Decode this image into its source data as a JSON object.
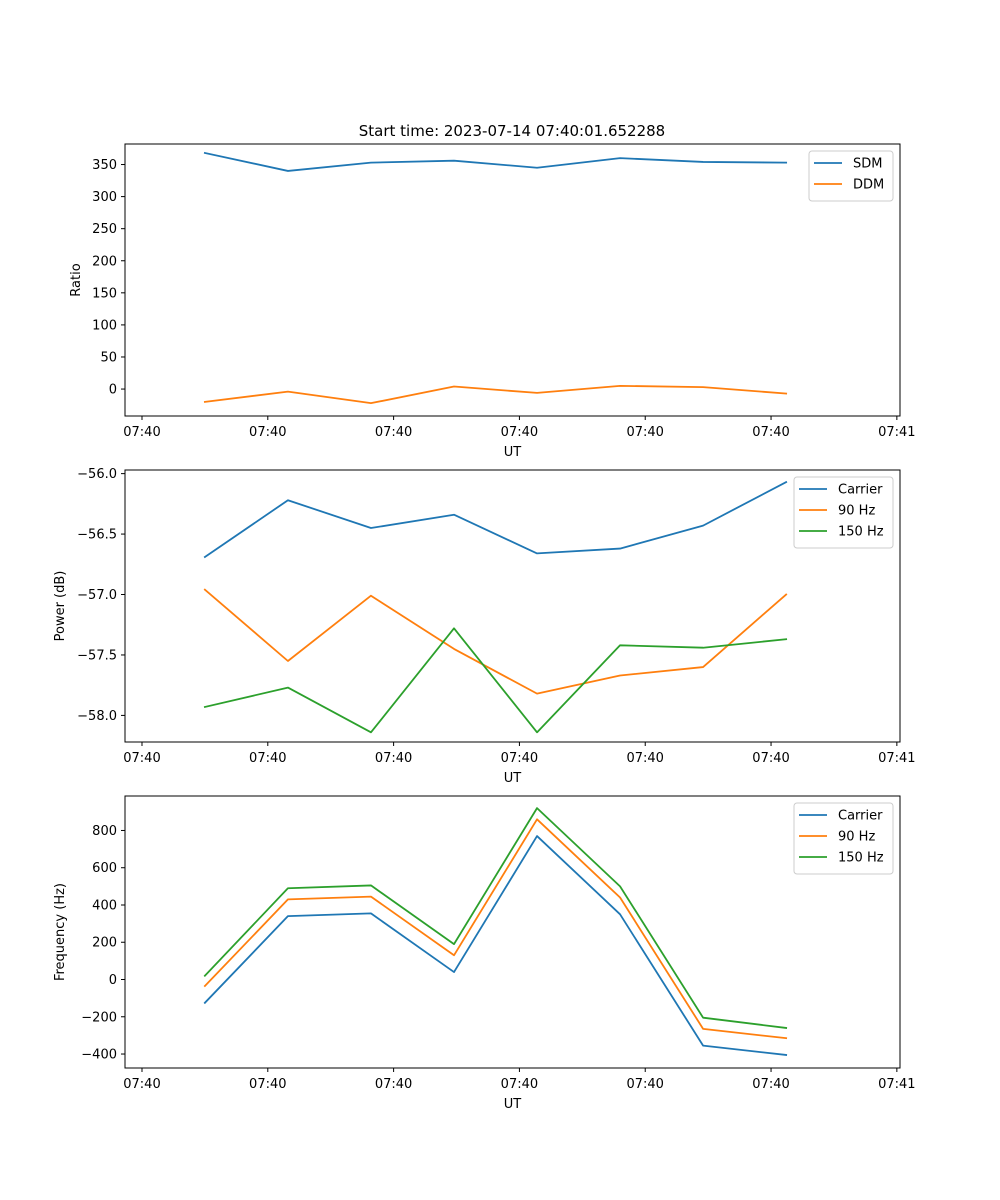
{
  "figure": {
    "title": "Start time: 2023-07-14 07:40:01.652288"
  },
  "chart_data": [
    {
      "type": "line",
      "name": "ratio",
      "xlabel": "UT",
      "ylabel": "Ratio",
      "x_tick_labels": [
        "07:40",
        "07:40",
        "07:40",
        "07:40",
        "07:40",
        "07:40",
        "07:41"
      ],
      "x_tick_positions": [
        0,
        2,
        4,
        6,
        8,
        10,
        12
      ],
      "x": [
        1,
        2.32,
        3.64,
        4.96,
        6.28,
        7.6,
        8.92,
        10.24
      ],
      "xlim": [
        -0.27,
        12.05
      ],
      "ylim": [
        -42,
        382
      ],
      "yticks": [
        0,
        50,
        100,
        150,
        200,
        250,
        300,
        350
      ],
      "y_tick_labels": [
        "0",
        "50",
        "100",
        "150",
        "200",
        "250",
        "300",
        "350"
      ],
      "legend": "top-right",
      "series": [
        {
          "name": "SDM",
          "color": "#1f77b4",
          "values": [
            368,
            340,
            353,
            356,
            345,
            360,
            354,
            353
          ]
        },
        {
          "name": "DDM",
          "color": "#ff7f0e",
          "values": [
            -20,
            -4,
            -22,
            4,
            -6,
            5,
            3,
            -7
          ]
        }
      ]
    },
    {
      "type": "line",
      "name": "power",
      "xlabel": "UT",
      "ylabel": "Power (dB)",
      "x_tick_labels": [
        "07:40",
        "07:40",
        "07:40",
        "07:40",
        "07:40",
        "07:40",
        "07:41"
      ],
      "x_tick_positions": [
        0,
        2,
        4,
        6,
        8,
        10,
        12
      ],
      "x": [
        1,
        2.32,
        3.64,
        4.96,
        6.28,
        7.6,
        8.92,
        10.24
      ],
      "xlim": [
        -0.27,
        12.05
      ],
      "ylim": [
        -58.22,
        -55.97
      ],
      "yticks": [
        -58.0,
        -57.5,
        -57.0,
        -56.5,
        -56.0
      ],
      "y_tick_labels": [
        "−58.0",
        "−57.5",
        "−57.0",
        "−56.5",
        "−56.0"
      ],
      "legend": "top-right",
      "series": [
        {
          "name": "Carrier",
          "color": "#1f77b4",
          "values": [
            -56.69,
            -56.22,
            -56.45,
            -56.34,
            -56.66,
            -56.62,
            -56.43,
            -56.07
          ]
        },
        {
          "name": "90 Hz",
          "color": "#ff7f0e",
          "values": [
            -56.96,
            -57.55,
            -57.01,
            -57.45,
            -57.82,
            -57.67,
            -57.6,
            -57.0
          ]
        },
        {
          "name": "150 Hz",
          "color": "#2ca02c",
          "values": [
            -57.93,
            -57.77,
            -58.14,
            -57.28,
            -58.14,
            -57.42,
            -57.44,
            -57.37
          ]
        }
      ]
    },
    {
      "type": "line",
      "name": "frequency",
      "xlabel": "UT",
      "ylabel": "Frequency (Hz)",
      "x_tick_labels": [
        "07:40",
        "07:40",
        "07:40",
        "07:40",
        "07:40",
        "07:40",
        "07:41"
      ],
      "x_tick_positions": [
        0,
        2,
        4,
        6,
        8,
        10,
        12
      ],
      "x": [
        1,
        2.32,
        3.64,
        4.96,
        6.28,
        7.6,
        8.92,
        10.24
      ],
      "xlim": [
        -0.27,
        12.05
      ],
      "ylim": [
        -475,
        985
      ],
      "yticks": [
        -400,
        -200,
        0,
        200,
        400,
        600,
        800
      ],
      "y_tick_labels": [
        "−400",
        "−200",
        "0",
        "200",
        "400",
        "600",
        "800"
      ],
      "legend": "top-right",
      "series": [
        {
          "name": "Carrier",
          "color": "#1f77b4",
          "values": [
            -125,
            340,
            355,
            40,
            770,
            350,
            -355,
            -405
          ]
        },
        {
          "name": "90 Hz",
          "color": "#ff7f0e",
          "values": [
            -35,
            430,
            445,
            130,
            860,
            440,
            -265,
            -315
          ]
        },
        {
          "name": "150 Hz",
          "color": "#2ca02c",
          "values": [
            20,
            490,
            505,
            190,
            920,
            500,
            -205,
            -260
          ]
        }
      ]
    }
  ]
}
